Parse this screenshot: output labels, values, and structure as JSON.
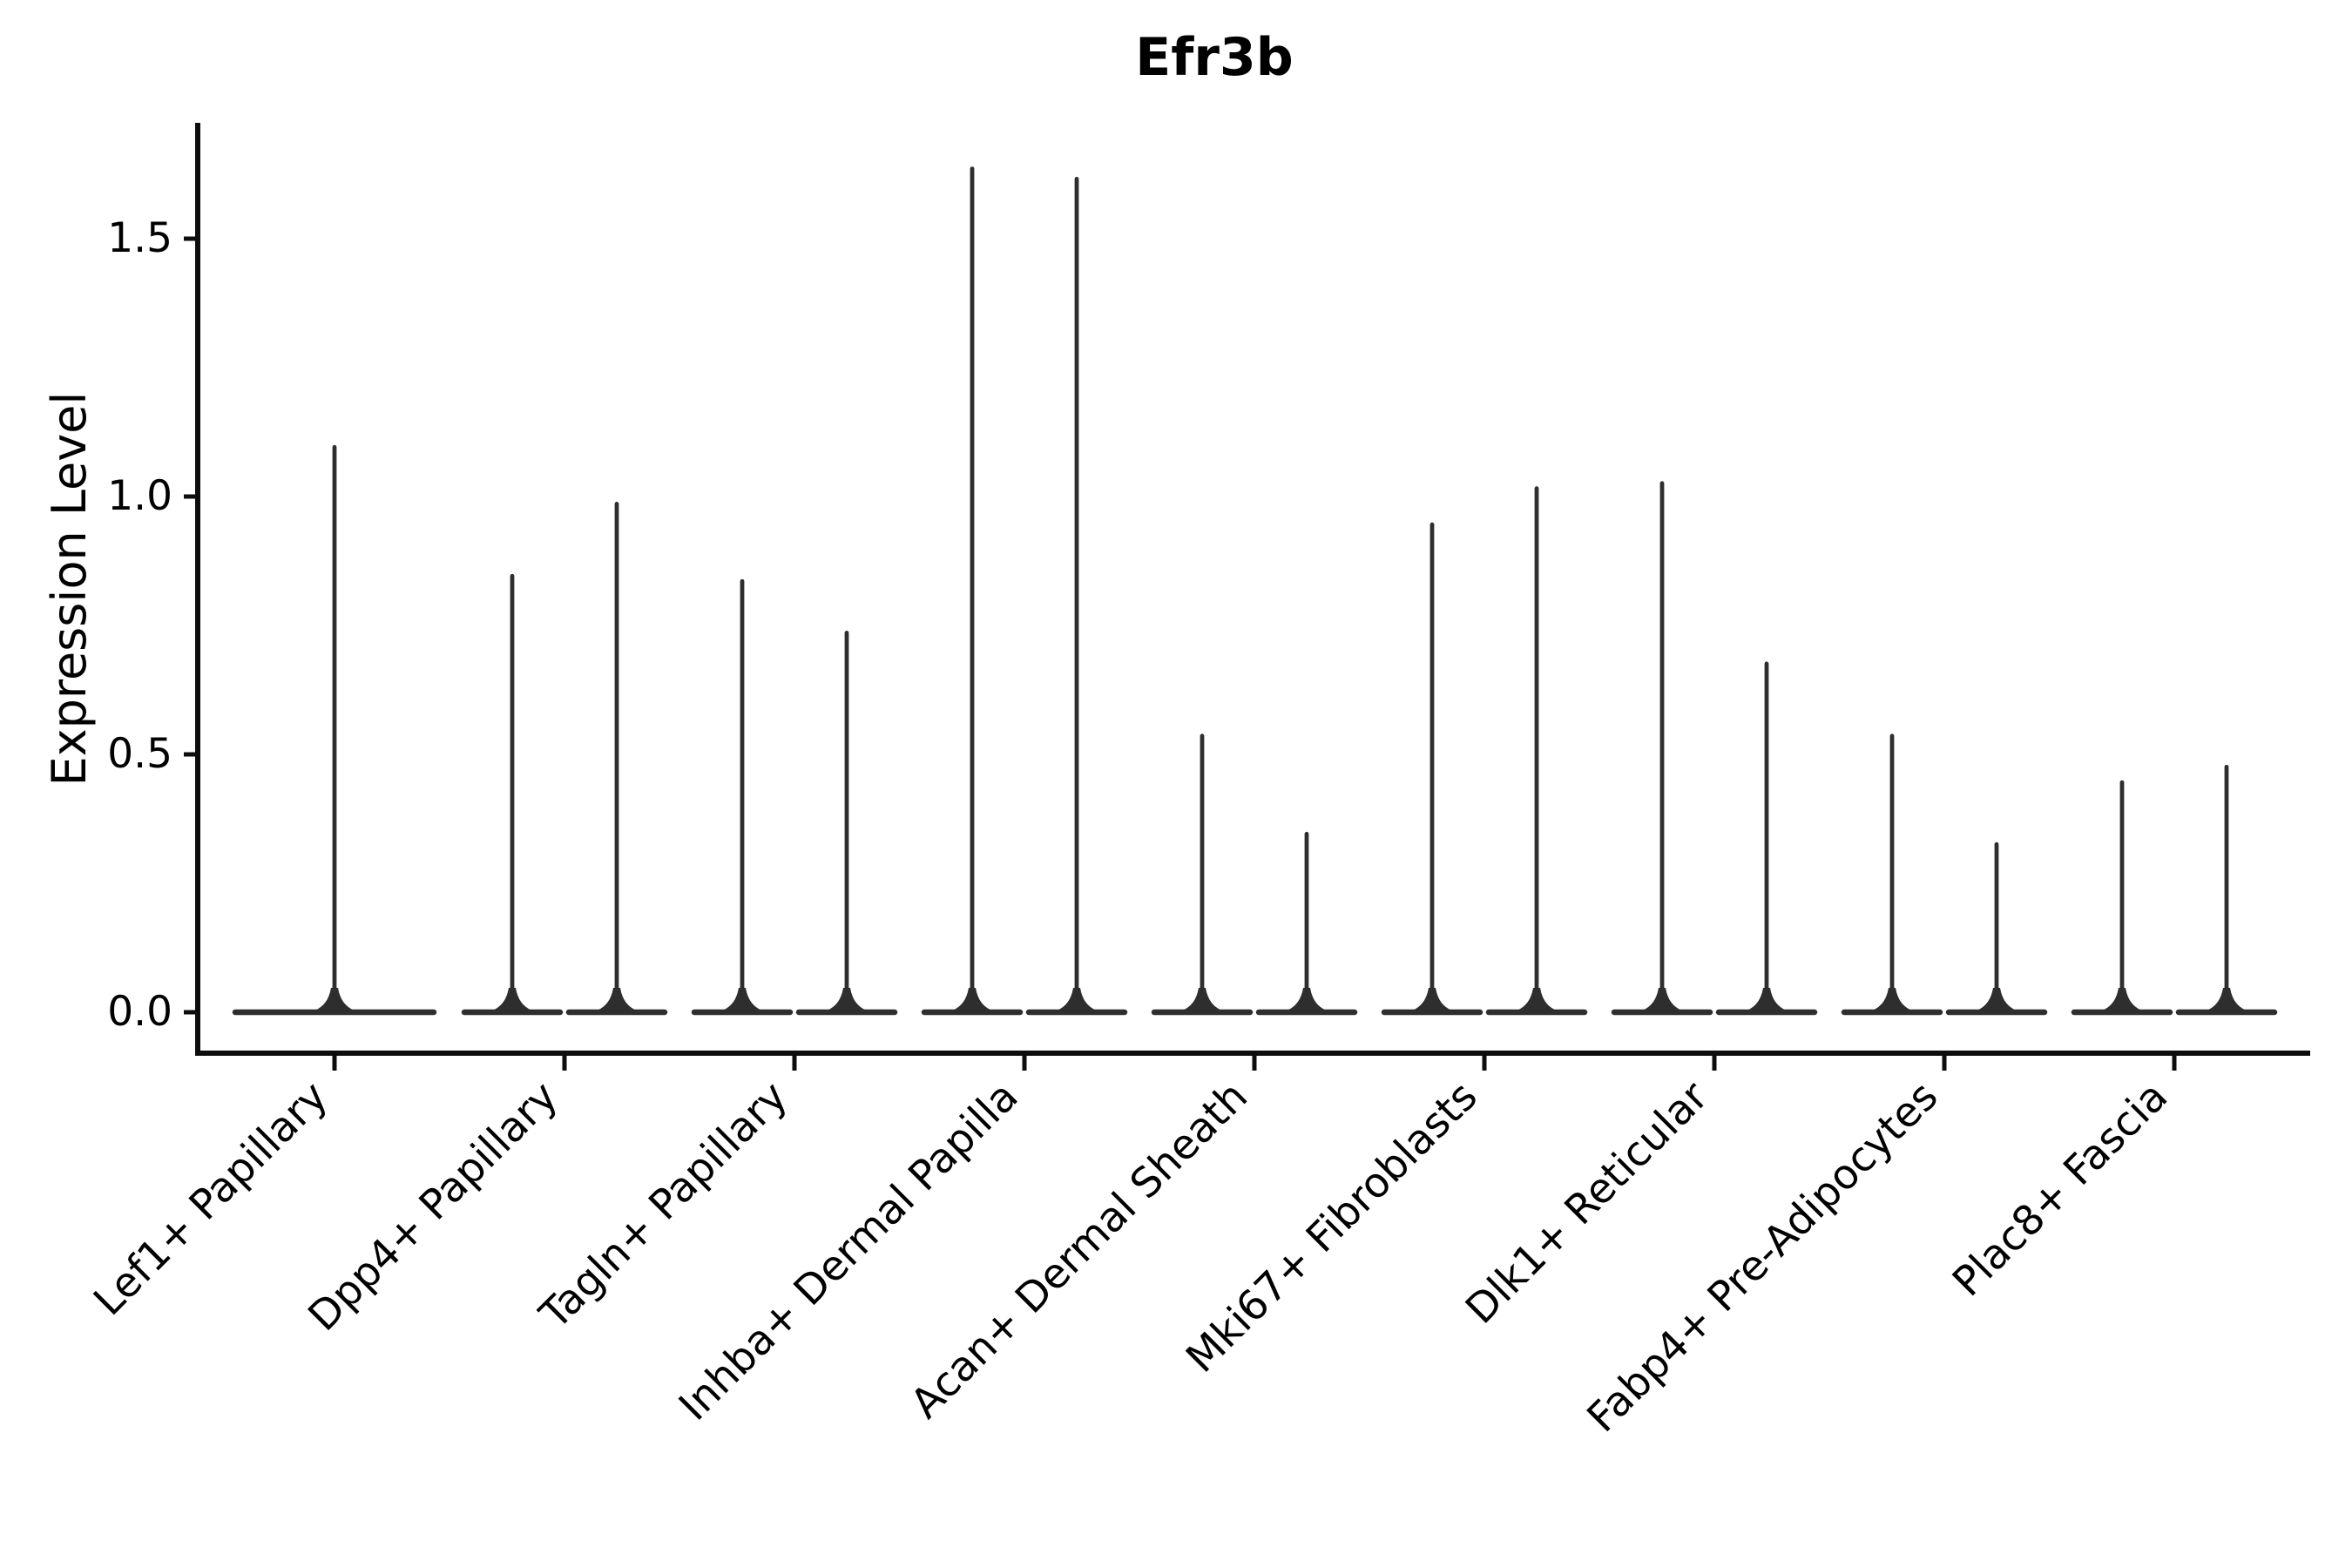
{
  "chart_data": {
    "type": "violin",
    "title": "Efr3b",
    "xlabel": "",
    "ylabel": "Expression Level",
    "categories": [
      "Lef1+ Papillary",
      "Dpp4+ Papillary",
      "Tagln+ Papillary",
      "Inhba+ Dermal Papilla",
      "Acan+ Dermal Sheath",
      "Mki67+ Fibroblasts",
      "Dlk1+ Reticular",
      "Fabp4+ Pre-Adipocytes",
      "Plac8+ Fascia"
    ],
    "violins": [
      {
        "category": "Lef1+ Papillary",
        "maxima": [
          1.1
        ]
      },
      {
        "category": "Dpp4+ Papillary",
        "maxima": [
          0.85,
          0.99
        ]
      },
      {
        "category": "Tagln+ Papillary",
        "maxima": [
          0.84,
          0.74
        ]
      },
      {
        "category": "Inhba+ Dermal Papilla",
        "maxima": [
          1.64,
          1.62
        ]
      },
      {
        "category": "Acan+ Dermal Sheath",
        "maxima": [
          0.54,
          0.35
        ]
      },
      {
        "category": "Mki67+ Fibroblasts",
        "maxima": [
          0.95,
          1.02
        ]
      },
      {
        "category": "Dlk1+ Reticular",
        "maxima": [
          1.03,
          0.68
        ]
      },
      {
        "category": "Fabp4+ Pre-Adipocytes",
        "maxima": [
          0.54,
          0.33
        ]
      },
      {
        "category": "Plac8+ Fascia",
        "maxima": [
          0.45,
          0.48
        ]
      }
    ],
    "violin_min_value": 0.0,
    "density_concentrated_at": 0.0,
    "yticks": [
      0.0,
      0.5,
      1.0,
      1.5
    ],
    "ytick_labels": [
      "0.0",
      "0.5",
      "1.0",
      "1.5"
    ],
    "ylim": [
      -0.09,
      1.73
    ],
    "grid": false,
    "legend": null
  },
  "colors": {
    "violin": "#2e2e2e",
    "axis": "#0d0d0d",
    "text": "#000000",
    "background": "#ffffff"
  }
}
